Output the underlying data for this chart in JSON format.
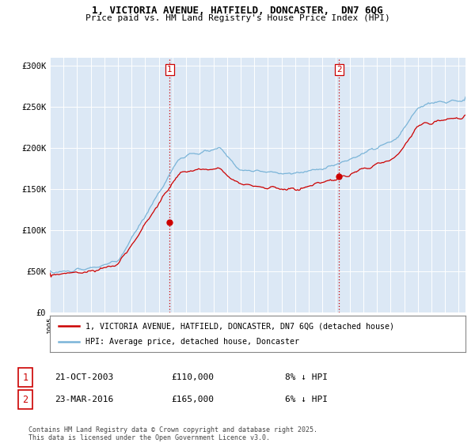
{
  "title_line1": "1, VICTORIA AVENUE, HATFIELD, DONCASTER,  DN7 6QG",
  "title_line2": "Price paid vs. HM Land Registry's House Price Index (HPI)",
  "ylabel_ticks": [
    "£0",
    "£50K",
    "£100K",
    "£150K",
    "£200K",
    "£250K",
    "£300K"
  ],
  "ytick_values": [
    0,
    50000,
    100000,
    150000,
    200000,
    250000,
    300000
  ],
  "ylim": [
    0,
    310000
  ],
  "xlim_start": 1995.0,
  "xlim_end": 2025.5,
  "hpi_color": "#7ab4d8",
  "price_color": "#cc0000",
  "vline_color": "#cc0000",
  "sale1_x": 2003.8,
  "sale1_y": 110000,
  "sale2_x": 2016.23,
  "sale2_y": 165000,
  "legend_line1": "1, VICTORIA AVENUE, HATFIELD, DONCASTER, DN7 6QG (detached house)",
  "legend_line2": "HPI: Average price, detached house, Doncaster",
  "sale1_date": "21-OCT-2003",
  "sale1_price": "£110,000",
  "sale1_pct": "8% ↓ HPI",
  "sale2_date": "23-MAR-2016",
  "sale2_price": "£165,000",
  "sale2_pct": "6% ↓ HPI",
  "footnote": "Contains HM Land Registry data © Crown copyright and database right 2025.\nThis data is licensed under the Open Government Licence v3.0.",
  "plot_bg_color": "#dce8f5",
  "fig_bg_color": "#ffffff"
}
